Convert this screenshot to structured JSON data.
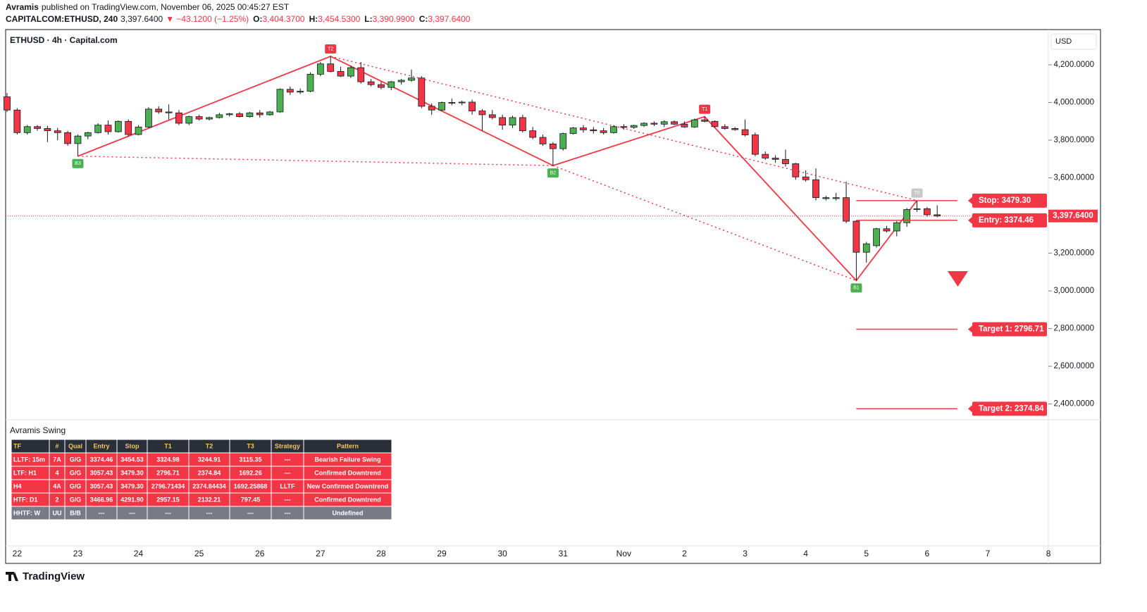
{
  "header": {
    "author": "Avramis",
    "published": "published on TradingView.com, November 06, 2025 00:45:27 EST",
    "symbol": "CAPITALCOM:ETHUSD, 240",
    "last": "3,397.6400",
    "change": "▼ −43.1200 (−1.25%)",
    "ohlc": [
      {
        "key": "O:",
        "value": "3,404.3700"
      },
      {
        "key": "H:",
        "value": "3,454.5300"
      },
      {
        "key": "L:",
        "value": "3,390.9900"
      },
      {
        "key": "C:",
        "value": "3,397.6400"
      }
    ]
  },
  "chart_data": {
    "type": "candlestick",
    "title": "ETHUSD · 4h · Capital.com",
    "currency": "USD",
    "up_color": "#4caf50",
    "down_color": "#f23645",
    "grid": false,
    "categories": [
      null,
      "22",
      null,
      null,
      null,
      null,
      null,
      "23",
      null,
      null,
      null,
      null,
      null,
      "24",
      null,
      null,
      null,
      null,
      null,
      "25",
      null,
      null,
      null,
      null,
      null,
      "26",
      null,
      null,
      null,
      null,
      null,
      "27",
      null,
      null,
      null,
      null,
      null,
      "28",
      null,
      null,
      null,
      null,
      null,
      "29",
      null,
      null,
      null,
      null,
      null,
      "30",
      null,
      null,
      null,
      null,
      null,
      "31",
      null,
      null,
      null,
      null,
      null,
      "Nov",
      null,
      null,
      null,
      null,
      null,
      "2",
      null,
      null,
      null,
      null,
      null,
      "3",
      null,
      null,
      null,
      null,
      null,
      "4",
      null,
      null,
      null,
      null,
      null,
      "5",
      null,
      null,
      null,
      null,
      null,
      "6",
      null,
      null,
      null,
      null,
      null,
      "7",
      null,
      null,
      null,
      null,
      null,
      "8"
    ],
    "open": [
      4030,
      3960,
      3840,
      3872,
      3862,
      3850,
      3840,
      3782,
      3822,
      3840,
      3880,
      3845,
      3900,
      3830,
      3870,
      3965,
      3950,
      3945,
      3890,
      3925,
      3912,
      3920,
      3935,
      3940,
      3925,
      3945,
      3935,
      3950,
      4070,
      4055,
      4060,
      4150,
      4205,
      4165,
      4140,
      4185,
      4110,
      4095,
      4080,
      4110,
      4118,
      4130,
      3980,
      3960,
      4000,
      3998,
      4002,
      3955,
      3935,
      3920,
      3880,
      3920,
      3850,
      3815,
      3780,
      3755,
      3835,
      3865,
      3855,
      3850,
      3840,
      3872,
      3868,
      3878,
      3890,
      3885,
      3898,
      3885,
      3870,
      3908,
      3900,
      3872,
      3862,
      3856,
      3828,
      3725,
      3705,
      3698,
      3675,
      3605,
      3590,
      3495,
      3490,
      3495,
      3370,
      3205,
      3240,
      3330,
      3318,
      3362,
      3432,
      3436,
      3404.37,
      null,
      null,
      null,
      null,
      null,
      null,
      null,
      null,
      null,
      null,
      null
    ],
    "high": [
      4050,
      3970,
      3880,
      3880,
      3875,
      3865,
      3850,
      3830,
      3845,
      3890,
      3905,
      3905,
      3910,
      3880,
      3975,
      3980,
      3990,
      3960,
      3930,
      3935,
      3925,
      3945,
      3945,
      3950,
      3950,
      3960,
      3955,
      4075,
      4085,
      4075,
      4160,
      4215,
      4245,
      4190,
      4195,
      4215,
      4125,
      4110,
      4115,
      4125,
      4175,
      4140,
      3995,
      4005,
      4020,
      4010,
      4015,
      3965,
      3960,
      3935,
      3930,
      3935,
      3870,
      3830,
      3790,
      3840,
      3870,
      3880,
      3870,
      3865,
      3880,
      3885,
      3882,
      3895,
      3900,
      3905,
      3905,
      3900,
      3915,
      3925,
      3905,
      3885,
      3870,
      3910,
      3840,
      3740,
      3720,
      3750,
      3680,
      3640,
      3650,
      3505,
      3520,
      3580,
      3375,
      3260,
      3335,
      3345,
      3370,
      3440,
      3480,
      3445,
      3454.53,
      null,
      null,
      null,
      null,
      null,
      null,
      null,
      null,
      null,
      null,
      null
    ],
    "low": [
      3950,
      3830,
      3830,
      3850,
      3790,
      3800,
      3770,
      3715,
      3805,
      3835,
      3830,
      3840,
      3820,
      3825,
      3865,
      3940,
      3910,
      3880,
      3880,
      3905,
      3905,
      3915,
      3925,
      3920,
      3920,
      3920,
      3930,
      3945,
      4040,
      4045,
      4055,
      4140,
      4160,
      4135,
      4130,
      4100,
      4085,
      4070,
      4065,
      4095,
      4110,
      3970,
      3935,
      3955,
      3985,
      3985,
      3935,
      3850,
      3910,
      3855,
      3865,
      3840,
      3805,
      3770,
      3665,
      3745,
      3830,
      3840,
      3835,
      3830,
      3835,
      3855,
      3860,
      3870,
      3875,
      3870,
      3880,
      3865,
      3865,
      3895,
      3865,
      3855,
      3850,
      3820,
      3715,
      3695,
      3680,
      3660,
      3590,
      3580,
      3480,
      3480,
      3480,
      3360,
      3055,
      3150,
      3230,
      3310,
      3290,
      3340,
      3420,
      3395,
      3390.99,
      null,
      null,
      null,
      null,
      null,
      null,
      null,
      null,
      null,
      null,
      null
    ],
    "close": [
      3960,
      3840,
      3872,
      3862,
      3850,
      3840,
      3782,
      3822,
      3840,
      3880,
      3845,
      3900,
      3830,
      3870,
      3965,
      3950,
      3945,
      3890,
      3925,
      3912,
      3920,
      3935,
      3940,
      3925,
      3945,
      3935,
      3950,
      4070,
      4055,
      4060,
      4150,
      4205,
      4165,
      4140,
      4185,
      4110,
      4095,
      4080,
      4110,
      4118,
      4130,
      3980,
      3960,
      4000,
      3998,
      4002,
      3955,
      3935,
      3920,
      3880,
      3920,
      3850,
      3815,
      3780,
      3755,
      3835,
      3865,
      3855,
      3850,
      3840,
      3872,
      3868,
      3878,
      3890,
      3885,
      3898,
      3885,
      3870,
      3908,
      3900,
      3872,
      3862,
      3856,
      3828,
      3725,
      3705,
      3698,
      3675,
      3605,
      3590,
      3495,
      3490,
      3495,
      3370,
      3205,
      3250,
      3330,
      3318,
      3362,
      3432,
      3436,
      3404.37,
      3397.64,
      null,
      null,
      null,
      null,
      null,
      null,
      null,
      null,
      null,
      null,
      null
    ],
    "ylim": [
      2320,
      4387
    ],
    "yticks": [
      {
        "value": 2400,
        "label": "2,400.0000"
      },
      {
        "value": 2600,
        "label": "2,600.0000"
      },
      {
        "value": 2800,
        "label": "2,800.0000"
      },
      {
        "value": 3000,
        "label": "3,000.0000"
      },
      {
        "value": 3200,
        "label": "3,200.0000"
      },
      {
        "value": 3400,
        "label": "3,400.0000"
      },
      {
        "value": 3600,
        "label": "3,600.0000"
      },
      {
        "value": 3800,
        "label": "3,800.0000"
      },
      {
        "value": 4000,
        "label": "4,000.0000"
      },
      {
        "value": 4200,
        "label": "4,200.0000"
      }
    ],
    "last_price": {
      "value": 3397.64,
      "label": "3,397.6400"
    },
    "swing_points": [
      {
        "label": "B3",
        "index": 7,
        "price": 3715,
        "color": "#4caf50"
      },
      {
        "label": "T2",
        "index": 32,
        "price": 4245,
        "color": "#f23645"
      },
      {
        "label": "B2",
        "index": 54,
        "price": 3665,
        "color": "#4caf50"
      },
      {
        "label": "T1",
        "index": 69,
        "price": 3925,
        "color": "#f23645"
      },
      {
        "label": "B1",
        "index": 84,
        "price": 3055,
        "color": "#4caf50"
      },
      {
        "label": "T0",
        "index": 90,
        "price": 3480,
        "color": "#c8c8c8"
      }
    ],
    "levels": [
      {
        "label": "Stop: 3479.30",
        "value": 3479.3
      },
      {
        "label": "Entry: 3374.46",
        "value": 3374.46
      },
      {
        "label": "Target 1: 2796.71",
        "value": 2796.71
      },
      {
        "label": "Target 2: 2374.84",
        "value": 2374.84
      }
    ]
  },
  "indicator": {
    "title": "Avramis Swing",
    "columns": [
      "TF",
      "#",
      "Qual",
      "Entry",
      "Stop",
      "T1",
      "T2",
      "T3",
      "Strategy",
      "Pattern"
    ],
    "rows": [
      [
        "LLTF: 15m",
        "7A",
        "G/G",
        "3374.46",
        "3454.53",
        "3324.98",
        "3244.91",
        "3115.35",
        "---",
        "Bearish Failure Swing"
      ],
      [
        "LTF: H1",
        "4",
        "G/G",
        "3057.43",
        "3479.30",
        "2796.71",
        "2374.84",
        "1692.26",
        "---",
        "Confirmed Downtrend"
      ],
      [
        "H4",
        "4A",
        "G/G",
        "3057.43",
        "3479.30",
        "2796.71434",
        "2374.84434",
        "1692.25868",
        "LLTF",
        "New Confirmed Downtrend"
      ],
      [
        "HTF: D1",
        "2",
        "G/G",
        "3466.96",
        "4291.90",
        "2957.15",
        "2132.21",
        "797.45",
        "---",
        "Confirmed Downtrend"
      ],
      [
        "HHTF: W",
        "UU",
        "B/B",
        "---",
        "---",
        "---",
        "---",
        "---",
        "---",
        "Undefined"
      ]
    ],
    "row_colors": [
      "#f23645",
      "#f23645",
      "#f23645",
      "#f23645",
      "#787b86"
    ]
  },
  "footer": {
    "brand": "TradingView"
  }
}
